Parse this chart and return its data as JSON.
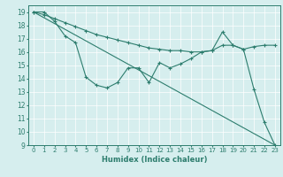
{
  "xlabel": "Humidex (Indice chaleur)",
  "xlim": [
    -0.5,
    23.5
  ],
  "ylim": [
    9,
    19.5
  ],
  "yticks": [
    9,
    10,
    11,
    12,
    13,
    14,
    15,
    16,
    17,
    18,
    19
  ],
  "xticks": [
    0,
    1,
    2,
    3,
    4,
    5,
    6,
    7,
    8,
    9,
    10,
    11,
    12,
    13,
    14,
    15,
    16,
    17,
    18,
    19,
    20,
    21,
    22,
    23
  ],
  "bg_color": "#d6eeee",
  "line_color": "#2d7d6e",
  "grid_color": "#ffffff",
  "line1_x": [
    0,
    1,
    2,
    3,
    4,
    5,
    6,
    7,
    8,
    9,
    10,
    11,
    12,
    13,
    14,
    15,
    16,
    17,
    18,
    19,
    20,
    21,
    22,
    23
  ],
  "line1_y": [
    19,
    19,
    18.3,
    17.2,
    16.7,
    14.1,
    13.5,
    13.3,
    13.7,
    14.8,
    14.8,
    13.7,
    15.2,
    14.8,
    15.1,
    15.5,
    16.0,
    16.1,
    17.5,
    16.5,
    16.2,
    13.2,
    10.7,
    9.0
  ],
  "line2_x": [
    0,
    23
  ],
  "line2_y": [
    19,
    9.0
  ],
  "line3_x": [
    0,
    1,
    2,
    3,
    4,
    5,
    6,
    7,
    8,
    9,
    10,
    11,
    12,
    13,
    14,
    15,
    16,
    17,
    18,
    19,
    20,
    21,
    22,
    23
  ],
  "line3_y": [
    19,
    18.8,
    18.5,
    18.2,
    17.9,
    17.6,
    17.3,
    17.1,
    16.9,
    16.7,
    16.5,
    16.3,
    16.2,
    16.1,
    16.1,
    16.0,
    16.0,
    16.1,
    16.5,
    16.5,
    16.2,
    16.4,
    16.5,
    16.5
  ]
}
